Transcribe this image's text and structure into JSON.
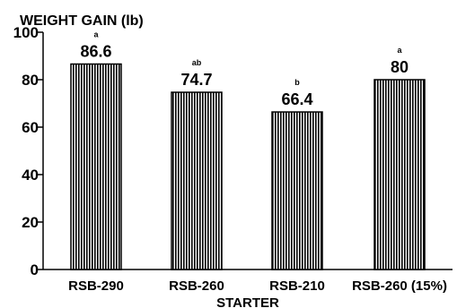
{
  "chart_data": {
    "type": "bar",
    "title": "WEIGHT GAIN (lb)",
    "xlabel": "STARTER",
    "ylabel": "",
    "ylim": [
      0,
      100
    ],
    "yticks": [
      0,
      20,
      40,
      60,
      80,
      100
    ],
    "grid": false,
    "categories": [
      "RSB-290",
      "RSB-260",
      "RSB-210",
      "RSB-260 (15%)"
    ],
    "values": [
      86.6,
      74.7,
      66.4,
      80
    ],
    "value_labels": [
      "86.6",
      "74.7",
      "66.4",
      "80"
    ],
    "significance_letters": [
      "a",
      "ab",
      "b",
      "a"
    ],
    "bar_pattern": "vertical-stripes",
    "colors": {
      "bar_fill": "#ffffff",
      "bar_stripe": "#000000",
      "axis": "#000000"
    }
  }
}
